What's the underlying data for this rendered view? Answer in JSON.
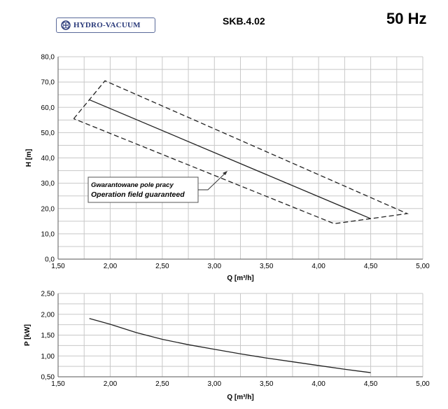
{
  "header": {
    "logo_text": "HYDRO-VACUUM",
    "model": "SKB.4.02",
    "frequency": "50 Hz"
  },
  "chart_data": [
    {
      "type": "line",
      "xlabel": "Q  [m³/h]",
      "ylabel": "H  [m]",
      "xlim": [
        1.5,
        5.0
      ],
      "ylim": [
        0,
        80
      ],
      "x_ticks": [
        "1,50",
        "2,00",
        "2,50",
        "3,00",
        "3,50",
        "4,00",
        "4,50",
        "5,00"
      ],
      "y_ticks": [
        "0,0",
        "10,0",
        "20,0",
        "30,0",
        "40,0",
        "50,0",
        "60,0",
        "70,0",
        "80,0"
      ],
      "grid": true,
      "series": [
        {
          "style": "solid",
          "x": [
            1.8,
            4.5
          ],
          "y": [
            63.0,
            16.0
          ]
        },
        {
          "style": "dashed",
          "x": [
            1.65,
            1.95,
            4.85,
            4.5,
            4.15,
            1.65
          ],
          "y": [
            55.5,
            70.5,
            18.0,
            16.0,
            14.0,
            55.5
          ]
        }
      ],
      "annotation": {
        "line1": "Gwarantowane pole pracy",
        "line2": "Operation field guaranteed"
      }
    },
    {
      "type": "line",
      "xlabel": "Q [m³/h]",
      "ylabel": "P [kW]",
      "xlim": [
        1.5,
        5.0
      ],
      "ylim": [
        0.5,
        2.5
      ],
      "x_ticks": [
        "1,50",
        "2,00",
        "2,50",
        "3,00",
        "3,50",
        "4,00",
        "4,50",
        "5,00"
      ],
      "y_ticks": [
        "0,50",
        "1,00",
        "1,50",
        "2,00",
        "2,50"
      ],
      "grid": true,
      "series": [
        {
          "style": "solid",
          "x": [
            1.8,
            2.0,
            2.25,
            2.5,
            2.75,
            3.0,
            3.25,
            3.5,
            3.75,
            4.0,
            4.25,
            4.5
          ],
          "y": [
            1.9,
            1.76,
            1.56,
            1.4,
            1.27,
            1.16,
            1.05,
            0.95,
            0.86,
            0.77,
            0.68,
            0.6
          ]
        }
      ]
    }
  ]
}
